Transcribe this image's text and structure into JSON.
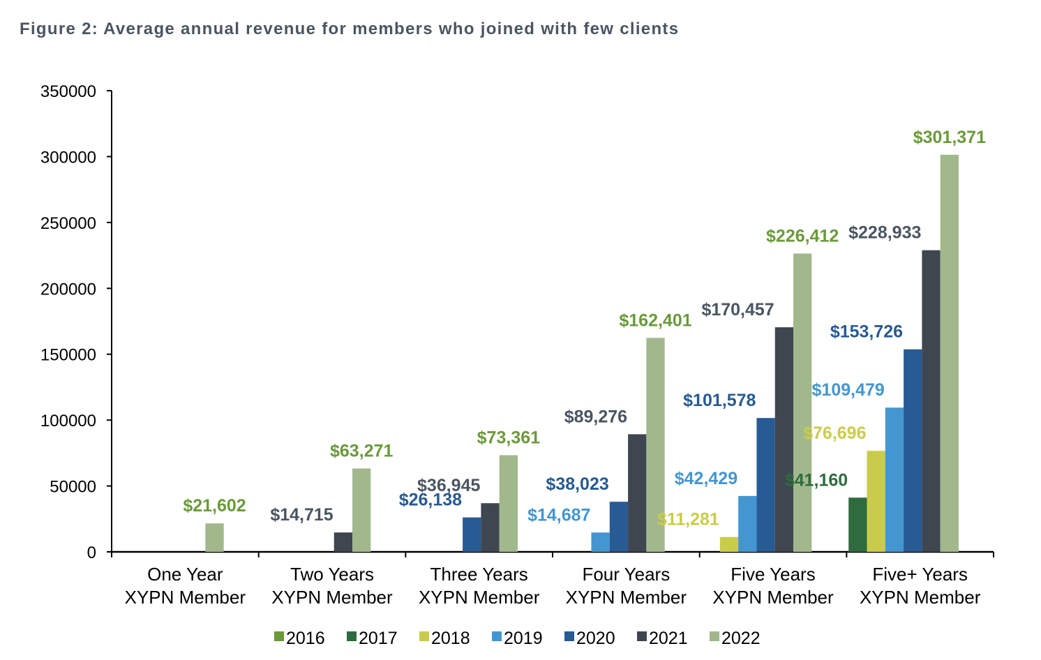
{
  "title": "Figure 2: Average annual revenue for members who joined with few clients",
  "chart_data": {
    "type": "bar",
    "title": "Figure 2: Average annual revenue for members who joined with few clients",
    "xlabel": "",
    "ylabel": "",
    "ylim": [
      0,
      350000
    ],
    "yticks": [
      0,
      50000,
      100000,
      150000,
      200000,
      250000,
      300000,
      350000
    ],
    "ytick_labels": [
      "0",
      "50000",
      "100000",
      "150000",
      "200000",
      "250000",
      "300000",
      "350000"
    ],
    "categories": [
      [
        "One Year",
        "XYPN Member"
      ],
      [
        "Two Years",
        "XYPN Member"
      ],
      [
        "Three Years",
        "XYPN Member"
      ],
      [
        "Four Years",
        "XYPN Member"
      ],
      [
        "Five Years",
        "XYPN Member"
      ],
      [
        "Five+ Years",
        "XYPN Member"
      ]
    ],
    "grid": false,
    "legend_position": "bottom",
    "series": [
      {
        "name": "2016",
        "color": "#6a9a3a",
        "label_color": "#6a9a3a",
        "values": [
          null,
          null,
          null,
          null,
          null,
          null
        ],
        "labels": [
          null,
          null,
          null,
          null,
          null,
          null
        ]
      },
      {
        "name": "2017",
        "color": "#2e6b3e",
        "label_color": "#2e6b3e",
        "values": [
          null,
          null,
          null,
          null,
          null,
          41160
        ],
        "labels": [
          null,
          null,
          null,
          null,
          null,
          "$41,160"
        ]
      },
      {
        "name": "2018",
        "color": "#c9cc4b",
        "label_color": "#c9cc4b",
        "values": [
          null,
          null,
          null,
          null,
          11281,
          76696
        ],
        "labels": [
          null,
          null,
          null,
          null,
          "$11,281",
          "$76,696"
        ]
      },
      {
        "name": "2019",
        "color": "#4496d0",
        "label_color": "#4496d0",
        "values": [
          null,
          null,
          null,
          14687,
          42429,
          109479
        ],
        "labels": [
          null,
          null,
          null,
          "$14,687",
          "$42,429",
          "$109,479"
        ]
      },
      {
        "name": "2020",
        "color": "#285a94",
        "label_color": "#285a94",
        "values": [
          null,
          null,
          26138,
          38023,
          101578,
          153726
        ],
        "labels": [
          null,
          null,
          "$26,138",
          "$38,023",
          "$101,578",
          "$153,726"
        ]
      },
      {
        "name": "2021",
        "color": "#3e4650",
        "label_color": "#4a5561",
        "values": [
          null,
          14715,
          36945,
          89276,
          170457,
          228933
        ],
        "labels": [
          null,
          "$14,715",
          "$36,945",
          "$89,276",
          "$170,457",
          "$228,933"
        ]
      },
      {
        "name": "2022",
        "color": "#a1b88c",
        "label_color": "#6a9a3a",
        "values": [
          21602,
          63271,
          73361,
          162401,
          226412,
          301371
        ],
        "labels": [
          "$21,602",
          "$63,271",
          "$73,361",
          "$162,401",
          "$226,412",
          "$301,371"
        ]
      }
    ]
  }
}
